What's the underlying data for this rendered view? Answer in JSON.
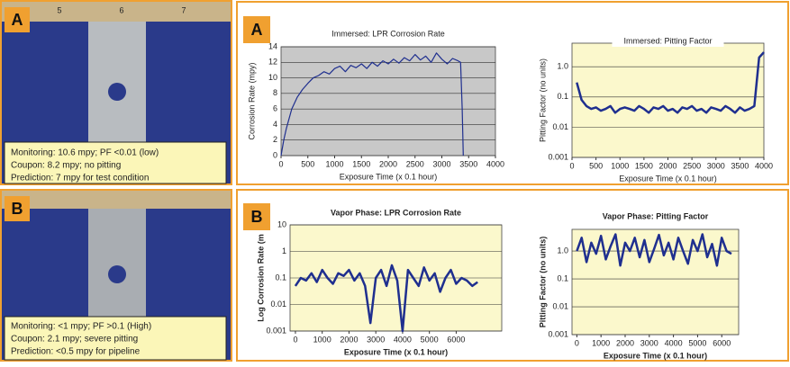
{
  "panels": [
    {
      "label": "A",
      "ruler": [
        "5",
        "6",
        "7"
      ],
      "chart_label": "A",
      "notes": [
        "Monitoring: 10.6 mpy; PF <0.01 (low)",
        "Coupon:  8.2 mpy; no pitting",
        "Prediction: 7 mpy for test condition"
      ]
    },
    {
      "label": "B",
      "chart_label": "B",
      "notes": [
        "Monitoring: <1 mpy; PF >0.1 (High)",
        "Coupon:  2.1 mpy; severe pitting",
        "Prediction: <0.5 mpy for pipeline"
      ]
    }
  ],
  "chart_data": [
    {
      "type": "line",
      "title": "Immersed: LPR Corrosion Rate",
      "x_label": "Exposure Time (x 0.1 hour)",
      "y_label": "Corrosion Rate (mpy)",
      "x": [
        0,
        50,
        100,
        200,
        300,
        400,
        500,
        600,
        700,
        800,
        900,
        1000,
        1100,
        1200,
        1300,
        1400,
        1500,
        1600,
        1700,
        1800,
        1900,
        2000,
        2100,
        2200,
        2300,
        2400,
        2500,
        2600,
        2700,
        2800,
        2900,
        3000,
        3100,
        3200,
        3300,
        3350,
        3380,
        3400
      ],
      "values": [
        0,
        2,
        3.5,
        6,
        7.5,
        8.5,
        9.3,
        10,
        10.3,
        10.8,
        10.5,
        11.2,
        11.5,
        10.8,
        11.6,
        11.3,
        11.8,
        11.2,
        12,
        11.5,
        12.2,
        11.8,
        12.4,
        11.9,
        12.6,
        12.2,
        13,
        12.3,
        12.8,
        12,
        13.2,
        12.4,
        11.8,
        12.5,
        12.2,
        12,
        6,
        0
      ],
      "color": "#1f2f8f",
      "background": "#c8c8c8",
      "xlim": [
        0,
        4000
      ],
      "xticks": [
        0,
        500,
        1000,
        1500,
        2000,
        2500,
        3000,
        3500,
        4000
      ],
      "ylim": [
        0,
        14
      ],
      "yticks": [
        0,
        2,
        4,
        6,
        8,
        10,
        12,
        14
      ],
      "grid": true,
      "log_y": false
    },
    {
      "type": "line",
      "title": "Immersed: Pitting Factor",
      "x_label": "Exposure Time (x 0.1 hour)",
      "y_label": "Pitting Factor (no units)",
      "x": [
        100,
        200,
        300,
        400,
        500,
        600,
        700,
        800,
        900,
        1000,
        1100,
        1200,
        1300,
        1400,
        1500,
        1600,
        1700,
        1800,
        1900,
        2000,
        2100,
        2200,
        2300,
        2400,
        2500,
        2600,
        2700,
        2800,
        2900,
        3000,
        3100,
        3200,
        3300,
        3400,
        3500,
        3600,
        3700,
        3800,
        3900,
        4000
      ],
      "values": [
        0.3,
        0.08,
        0.05,
        0.04,
        0.045,
        0.035,
        0.04,
        0.05,
        0.03,
        0.04,
        0.045,
        0.04,
        0.035,
        0.05,
        0.04,
        0.03,
        0.045,
        0.04,
        0.05,
        0.035,
        0.04,
        0.03,
        0.045,
        0.04,
        0.05,
        0.035,
        0.04,
        0.03,
        0.045,
        0.04,
        0.035,
        0.05,
        0.04,
        0.03,
        0.045,
        0.035,
        0.04,
        0.05,
        2,
        3
      ],
      "color": "#1f2f8f",
      "background": "#fbf8cc",
      "xlim": [
        0,
        4000
      ],
      "xticks": [
        0,
        500,
        1000,
        1500,
        2000,
        2500,
        3000,
        3500,
        4000
      ],
      "ylim": [
        0.001,
        6
      ],
      "yticks": [
        0.001,
        0.01,
        0.1,
        {
          "value": 1,
          "label": "1.0"
        }
      ],
      "grid": true,
      "log_y": true
    },
    {
      "type": "line",
      "title": "Vapor Phase: LPR Corrosion Rate",
      "x_label": "Exposure Time (x 0.1 hour)",
      "y_label": "Log Corrosion Rate (m",
      "x": [
        0,
        200,
        400,
        600,
        800,
        1000,
        1200,
        1400,
        1600,
        1800,
        2000,
        2200,
        2400,
        2600,
        2800,
        3000,
        3200,
        3400,
        3600,
        3800,
        4000,
        4200,
        4400,
        4600,
        4800,
        5000,
        5200,
        5400,
        5600,
        5800,
        6000,
        6200,
        6400,
        6600,
        6800
      ],
      "values": [
        0.05,
        0.1,
        0.08,
        0.15,
        0.07,
        0.2,
        0.1,
        0.06,
        0.15,
        0.12,
        0.2,
        0.08,
        0.15,
        0.05,
        0.002,
        0.1,
        0.2,
        0.05,
        0.3,
        0.08,
        0.001,
        0.2,
        0.1,
        0.05,
        0.25,
        0.08,
        0.15,
        0.03,
        0.1,
        0.2,
        0.06,
        0.1,
        0.08,
        0.05,
        0.07
      ],
      "color": "#1f2f8f",
      "background": "#fbf8cc",
      "xlim": [
        -200,
        7700
      ],
      "xticks": [
        0,
        1000,
        2000,
        3000,
        4000,
        5000,
        6000
      ],
      "ylim": [
        0.001,
        10
      ],
      "yticks": [
        0.001,
        0.01,
        0.1,
        1,
        10
      ],
      "grid": true,
      "log_y": true
    },
    {
      "type": "line",
      "title": "Vapor Phase: Pitting Factor",
      "x_label": "Exposure Time (x 0.1 hour)",
      "y_label": "Pitting Factor (no units)",
      "x": [
        0,
        200,
        400,
        600,
        800,
        1000,
        1200,
        1400,
        1600,
        1800,
        2000,
        2200,
        2400,
        2600,
        2800,
        3000,
        3200,
        3400,
        3600,
        3800,
        4000,
        4200,
        4400,
        4600,
        4800,
        5000,
        5200,
        5400,
        5600,
        5800,
        6000,
        6200,
        6400
      ],
      "values": [
        1,
        3,
        0.4,
        2,
        0.8,
        3.5,
        0.5,
        1.5,
        4,
        0.3,
        2,
        1,
        3,
        0.6,
        2.5,
        0.4,
        1.2,
        3.8,
        0.7,
        2,
        0.5,
        3,
        1,
        0.35,
        2.5,
        1,
        4,
        0.6,
        1.8,
        0.3,
        3,
        1,
        0.8
      ],
      "color": "#1f2f8f",
      "background": "#fbf8cc",
      "xlim": [
        -200,
        6700
      ],
      "xticks": [
        0,
        1000,
        2000,
        3000,
        4000,
        5000,
        6000
      ],
      "ylim": [
        0.001,
        6
      ],
      "yticks": [
        0.001,
        0.01,
        0.1,
        {
          "value": 1,
          "label": "1.0"
        }
      ],
      "grid": true,
      "log_y": true
    }
  ]
}
